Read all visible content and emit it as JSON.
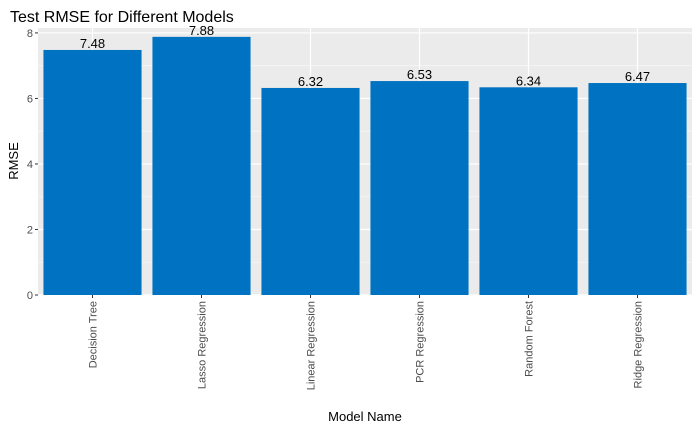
{
  "chart_data": {
    "type": "bar",
    "title": "Test RMSE for Different Models",
    "xlabel": "Model Name",
    "ylabel": "RMSE",
    "categories": [
      "Decision Tree",
      "Lasso Regression",
      "Linear Regression",
      "PCR Regression",
      "Random Forest",
      "Ridge Regression"
    ],
    "values": [
      7.48,
      7.88,
      6.32,
      6.53,
      6.34,
      6.47
    ],
    "data_labels": [
      "7.48",
      "7.88",
      "6.32",
      "6.53",
      "6.34",
      "6.47"
    ],
    "ylim": [
      0,
      8.15
    ],
    "yticks": [
      0,
      2,
      4,
      6,
      8
    ],
    "ytick_labels": [
      "0",
      "2",
      "4",
      "6",
      "8"
    ],
    "grid": true,
    "legend": "none",
    "colors": {
      "bar": "#0072C2",
      "panel": "#EBEBEB",
      "gridline": "#FFFFFF",
      "text": "#000000",
      "tick_text": "#4D4D4D"
    }
  }
}
